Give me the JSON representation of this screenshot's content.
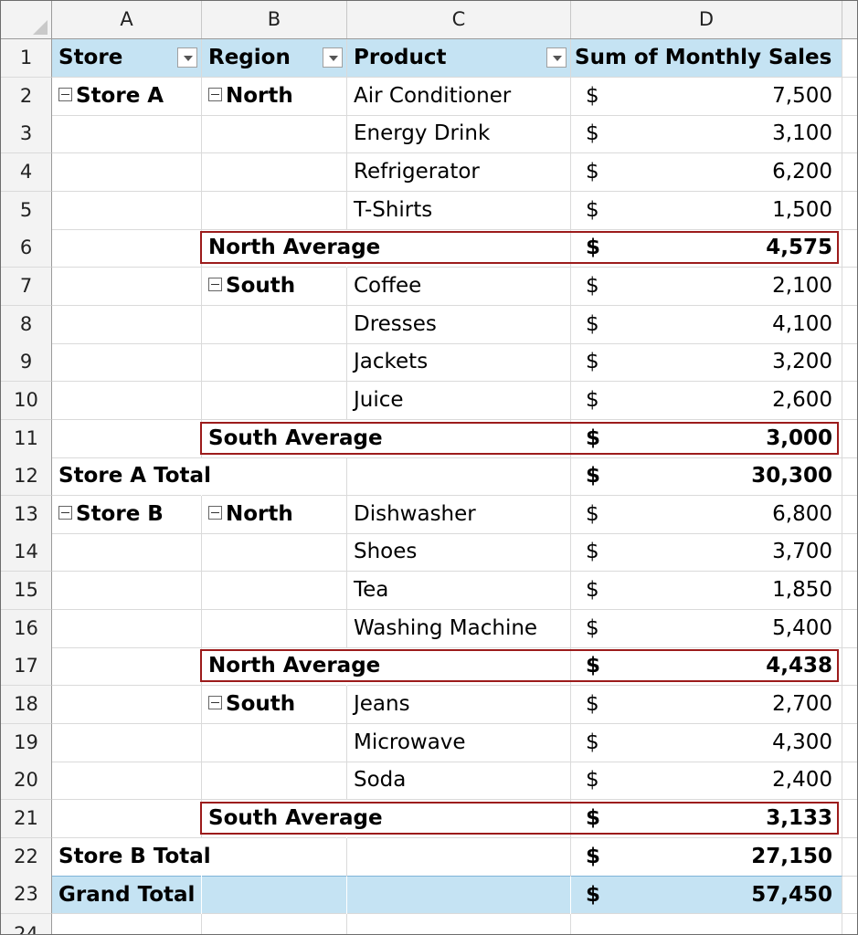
{
  "columns": [
    "A",
    "B",
    "C",
    "D"
  ],
  "pivot_headers": {
    "store": "Store",
    "region": "Region",
    "product": "Product",
    "sum": "Sum of Monthly Sales"
  },
  "currency_symbol": "$",
  "rows": [
    {
      "n": "1"
    },
    {
      "n": "2",
      "store": "Store A",
      "region": "North",
      "product": "Air Conditioner",
      "amount": "7,500"
    },
    {
      "n": "3",
      "product": "Energy Drink",
      "amount": "3,100"
    },
    {
      "n": "4",
      "product": "Refrigerator",
      "amount": "6,200"
    },
    {
      "n": "5",
      "product": "T-Shirts",
      "amount": "1,500"
    },
    {
      "n": "6",
      "label": "North Average",
      "amount": "4,575"
    },
    {
      "n": "7",
      "region": "South",
      "product": "Coffee",
      "amount": "2,100"
    },
    {
      "n": "8",
      "product": "Dresses",
      "amount": "4,100"
    },
    {
      "n": "9",
      "product": "Jackets",
      "amount": "3,200"
    },
    {
      "n": "10",
      "product": "Juice",
      "amount": "2,600"
    },
    {
      "n": "11",
      "label": "South Average",
      "amount": "3,000"
    },
    {
      "n": "12",
      "total_label": "Store A Total",
      "amount": "30,300"
    },
    {
      "n": "13",
      "store": "Store B",
      "region": "North",
      "product": "Dishwasher",
      "amount": "6,800"
    },
    {
      "n": "14",
      "product": "Shoes",
      "amount": "3,700"
    },
    {
      "n": "15",
      "product": "Tea",
      "amount": "1,850"
    },
    {
      "n": "16",
      "product": "Washing Machine",
      "amount": "5,400"
    },
    {
      "n": "17",
      "label": "North Average",
      "amount": "4,438"
    },
    {
      "n": "18",
      "region": "South",
      "product": "Jeans",
      "amount": "2,700"
    },
    {
      "n": "19",
      "product": "Microwave",
      "amount": "4,300"
    },
    {
      "n": "20",
      "product": "Soda",
      "amount": "2,400"
    },
    {
      "n": "21",
      "label": "South Average",
      "amount": "3,133"
    },
    {
      "n": "22",
      "total_label": "Store B Total",
      "amount": "27,150"
    },
    {
      "n": "23",
      "grand_label": "Grand Total",
      "amount": "57,450"
    },
    {
      "n": "24"
    }
  ],
  "colors": {
    "highlight_border": "#9c1b1b",
    "pivot_header_fill": "#c5e3f3"
  }
}
